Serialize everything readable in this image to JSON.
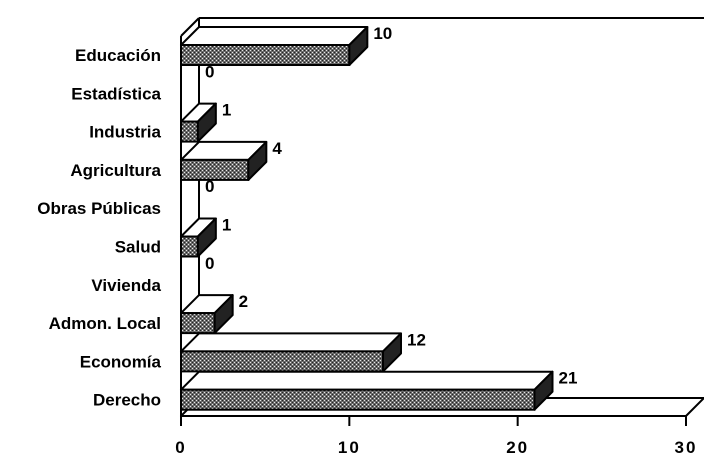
{
  "chart_data": {
    "type": "bar",
    "orientation": "horizontal",
    "style": "3d",
    "categories": [
      "Educación",
      "Estadística",
      "Industria",
      "Agricultura",
      "Obras Públicas",
      "Salud",
      "Vivienda",
      "Admon. Local",
      "Economía",
      "Derecho"
    ],
    "values": [
      10,
      0,
      1,
      4,
      0,
      1,
      0,
      2,
      12,
      21
    ],
    "data_labels": [
      "10",
      "0",
      "1",
      "4",
      "0",
      "1",
      "0",
      "2",
      "12",
      "21"
    ],
    "title": "",
    "xlabel": "",
    "ylabel": "",
    "xlim": [
      0,
      30
    ],
    "x_ticks": [
      0,
      10,
      20,
      30
    ],
    "x_tick_labels": [
      "0",
      "10",
      "20",
      "30"
    ],
    "grid": false,
    "legend": "none",
    "colors": {
      "bar_front": "#555555",
      "bar_top": "#ffffff",
      "bar_side": "#222222",
      "axis": "#000000",
      "background": "#ffffff"
    }
  }
}
